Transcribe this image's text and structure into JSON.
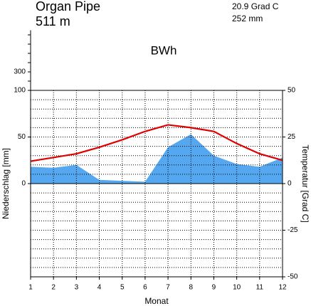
{
  "chart_data": {
    "type": "climate",
    "title": "Organ Pipe",
    "subtitle": "511 m",
    "annotations": [
      "20.9 Grad C",
      "252 mm"
    ],
    "climate_class": "BWh",
    "xlabel": "Monat",
    "ylabel": "Niederschlag [mm]",
    "y2label": "Temperatur [Grad C]",
    "x": [
      1,
      2,
      3,
      4,
      5,
      6,
      7,
      8,
      9,
      10,
      11,
      12
    ],
    "xlim": [
      1,
      12
    ],
    "xticks": [
      1,
      2,
      3,
      4,
      5,
      6,
      7,
      8,
      9,
      10,
      11,
      12
    ],
    "ylim": [
      -100,
      100
    ],
    "yticks": [
      0,
      50,
      100
    ],
    "upper_yticks": [
      300
    ],
    "upper_minor_yticks": [
      200,
      400,
      500,
      600,
      700
    ],
    "y2lim": [
      -50,
      50
    ],
    "y2ticks": [
      -50,
      -25,
      0,
      25,
      50
    ],
    "y2_minor_ticks": [
      -45,
      -40,
      -35,
      -30,
      -20,
      -15,
      -10,
      -5,
      5,
      10,
      15,
      20,
      30,
      35,
      40,
      45
    ],
    "grid": true,
    "series": [
      {
        "name": "Niederschlag",
        "color": "#55a8f0",
        "values": [
          18,
          17,
          20,
          4,
          3,
          2,
          39,
          53,
          30,
          21,
          18,
          28
        ]
      },
      {
        "name": "Temperatur",
        "color": "#e00000",
        "axis": "y2",
        "values": [
          12,
          14,
          16,
          19.5,
          23.5,
          28,
          31.5,
          30,
          28,
          21.5,
          16,
          12.5
        ]
      }
    ]
  }
}
